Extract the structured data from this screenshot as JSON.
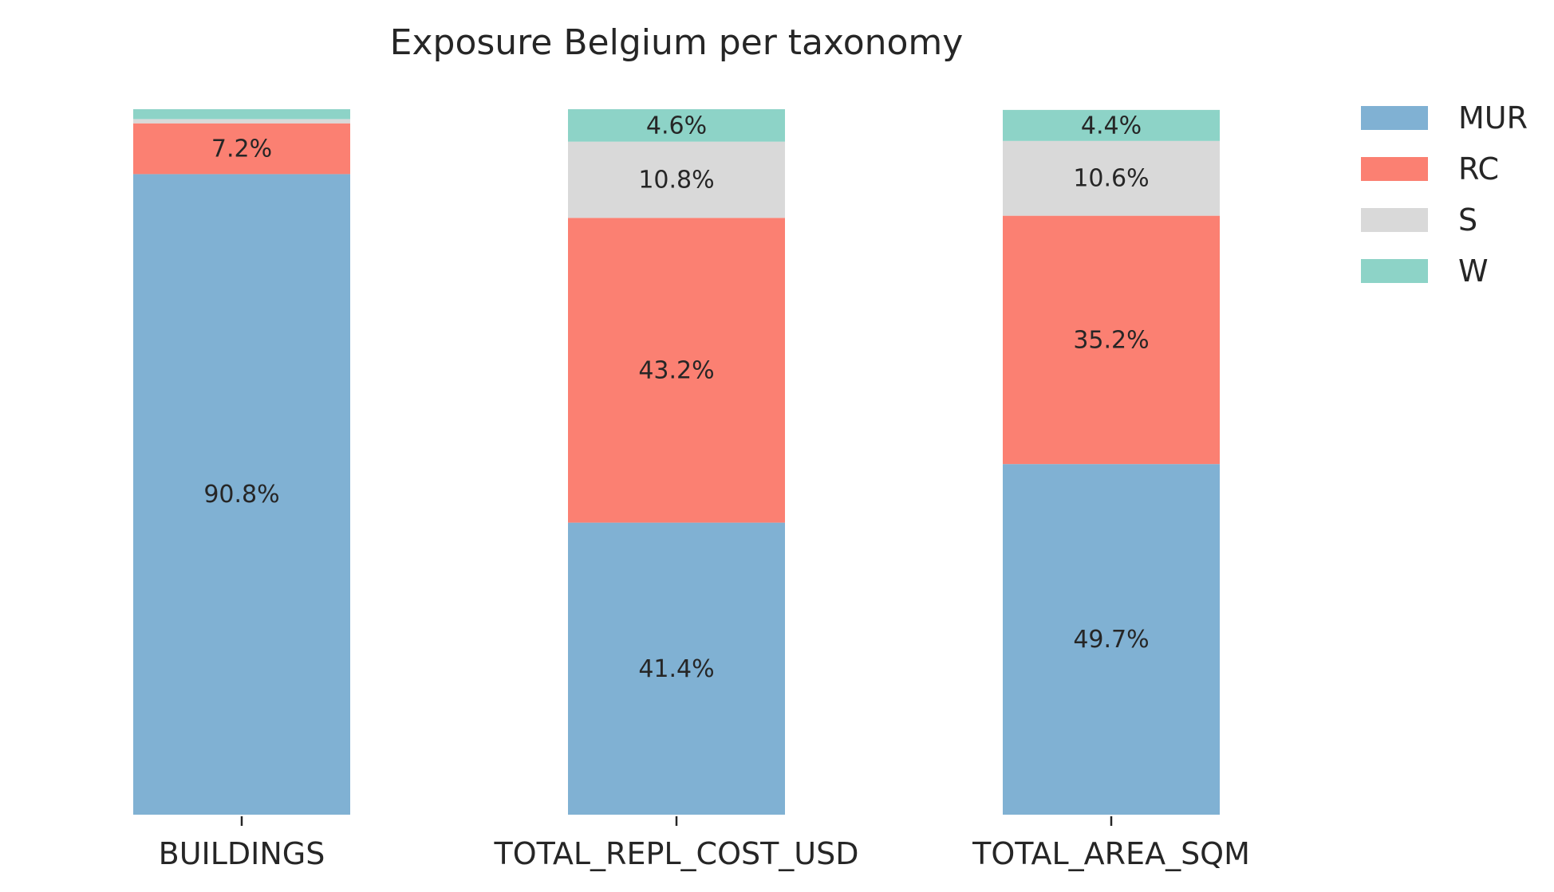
{
  "chart_data": {
    "type": "bar",
    "stacked": true,
    "title": "Exposure Belgium per taxonomy",
    "xlabel": "",
    "ylabel": "",
    "categories": [
      "BUILDINGS",
      "TOTAL_REPL_COST_USD",
      "TOTAL_AREA_SQM"
    ],
    "ylim": [
      0,
      100
    ],
    "grid": false,
    "legend_position": "top-right",
    "series": [
      {
        "name": "MUR",
        "color": "#80b1d3",
        "values": [
          90.8,
          41.4,
          49.7
        ],
        "labels": [
          "90.8%",
          "41.4%",
          "49.7%"
        ]
      },
      {
        "name": "RC",
        "color": "#fb8072",
        "values": [
          7.2,
          43.2,
          35.2
        ],
        "labels": [
          "7.2%",
          "43.2%",
          "35.2%"
        ]
      },
      {
        "name": "S",
        "color": "#d9d9d9",
        "values": [
          0.6,
          10.8,
          10.6
        ],
        "labels": [
          "",
          "10.8%",
          "10.6%"
        ]
      },
      {
        "name": "W",
        "color": "#8dd3c7",
        "values": [
          1.4,
          4.6,
          4.4
        ],
        "labels": [
          "",
          "4.6%",
          "4.4%"
        ]
      }
    ]
  }
}
